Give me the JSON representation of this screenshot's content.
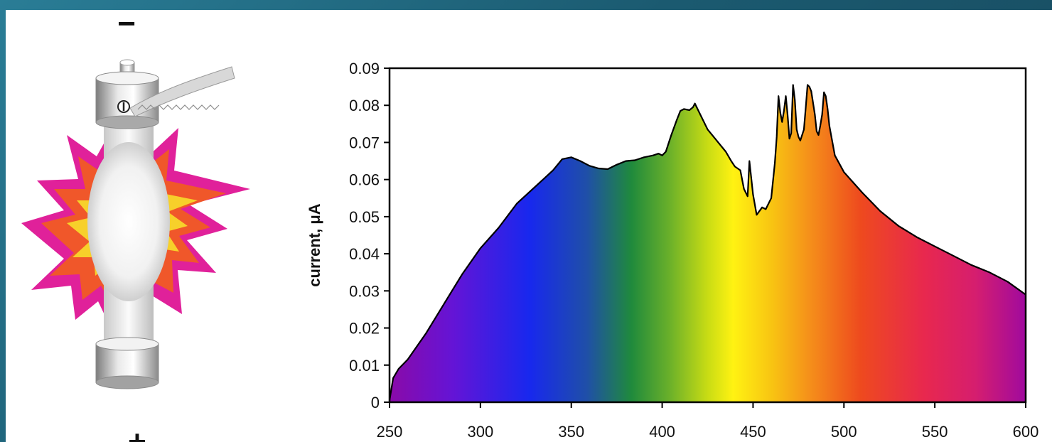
{
  "lamp": {
    "top_terminal_symbol": "−",
    "bottom_terminal_symbol": "+"
  },
  "chart_data": {
    "type": "area",
    "title": "",
    "xlabel": "",
    "ylabel": "current, μA",
    "xlim": [
      250,
      600
    ],
    "ylim": [
      0,
      0.09
    ],
    "x_ticks": [
      "250",
      "300",
      "350",
      "400",
      "450",
      "500",
      "550",
      "600"
    ],
    "y_ticks": [
      "0",
      "0.01",
      "0.02",
      "0.03",
      "0.04",
      "0.05",
      "0.06",
      "0.07",
      "0.08",
      "0.09"
    ],
    "grid": false,
    "fill": "visible-spectrum gradient (violet → blue → green → yellow → orange → red → magenta)",
    "series": [
      {
        "x": [
          250,
          252,
          255,
          260,
          270,
          280,
          290,
          300,
          310,
          320,
          330,
          340,
          345,
          350,
          355,
          360,
          365,
          370,
          375,
          380,
          385,
          390,
          395,
          398,
          400,
          402,
          405,
          408,
          410,
          412,
          415,
          417,
          418,
          420,
          425,
          430,
          435,
          438,
          440,
          443,
          445,
          447,
          448,
          450,
          452,
          455,
          457,
          460,
          462,
          463,
          464,
          465,
          466,
          467,
          468,
          469,
          470,
          471,
          472,
          473,
          474,
          475,
          476,
          478,
          479,
          480,
          481,
          482,
          484,
          485,
          486,
          487,
          488,
          489,
          490,
          491,
          492,
          495,
          500,
          510,
          520,
          530,
          540,
          550,
          560,
          570,
          580,
          590,
          600
        ],
        "y": [
          0.0005,
          0.0065,
          0.009,
          0.0115,
          0.0185,
          0.0265,
          0.0345,
          0.0415,
          0.047,
          0.0535,
          0.058,
          0.0625,
          0.0655,
          0.066,
          0.065,
          0.0637,
          0.063,
          0.0628,
          0.064,
          0.065,
          0.0652,
          0.066,
          0.0665,
          0.067,
          0.0665,
          0.0675,
          0.072,
          0.076,
          0.0785,
          0.079,
          0.0787,
          0.0795,
          0.0805,
          0.0785,
          0.0735,
          0.0705,
          0.0675,
          0.065,
          0.0635,
          0.0625,
          0.0575,
          0.0555,
          0.065,
          0.056,
          0.0505,
          0.0525,
          0.052,
          0.055,
          0.0645,
          0.0715,
          0.0825,
          0.078,
          0.0755,
          0.0785,
          0.0825,
          0.0775,
          0.071,
          0.0725,
          0.0855,
          0.0815,
          0.0735,
          0.0715,
          0.0705,
          0.0735,
          0.0795,
          0.0855,
          0.085,
          0.0838,
          0.0775,
          0.073,
          0.072,
          0.0745,
          0.0775,
          0.0835,
          0.0825,
          0.079,
          0.0745,
          0.0665,
          0.062,
          0.0565,
          0.0515,
          0.0475,
          0.0445,
          0.042,
          0.0395,
          0.037,
          0.035,
          0.0325,
          0.029
        ]
      }
    ]
  }
}
